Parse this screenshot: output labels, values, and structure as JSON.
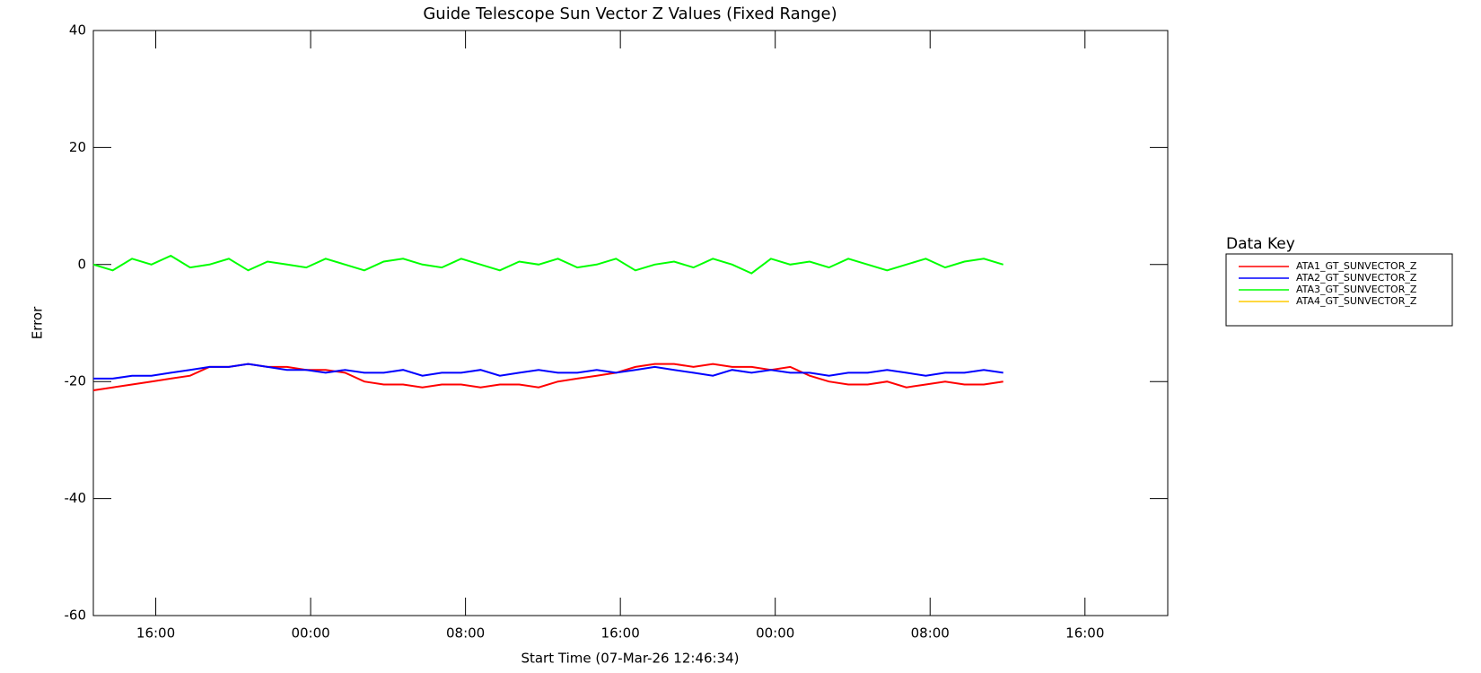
{
  "chart_data": {
    "type": "line",
    "title": "Guide Telescope Sun Vector Z Values (Fixed Range)",
    "xlabel": "Start Time (07-Mar-26 12:46:34)",
    "ylabel": "Error",
    "legend_title": "Data Key",
    "legend": "outside right",
    "x": [
      0,
      1,
      2,
      3,
      4,
      5,
      6,
      7,
      8,
      9,
      10,
      11,
      12,
      13,
      14,
      15,
      16,
      17,
      18,
      19,
      20,
      21,
      22,
      23,
      24,
      25,
      26,
      27,
      28,
      29,
      30,
      31,
      32,
      33,
      34,
      35,
      36,
      37,
      38,
      39,
      40,
      41,
      42,
      43,
      44,
      45,
      46,
      47
    ],
    "xlim": [
      0,
      55.5
    ],
    "xticks": [
      {
        "value": 3.224,
        "label": "16:00"
      },
      {
        "value": 11.224,
        "label": "00:00"
      },
      {
        "value": 19.224,
        "label": "08:00"
      },
      {
        "value": 27.224,
        "label": "16:00"
      },
      {
        "value": 35.224,
        "label": "00:00"
      },
      {
        "value": 43.224,
        "label": "08:00"
      },
      {
        "value": 51.224,
        "label": "16:00"
      }
    ],
    "ylim": [
      -60,
      40
    ],
    "yticks": [
      -60,
      -40,
      -20,
      0,
      20,
      40
    ],
    "series": [
      {
        "name": "ATA1_GT_SUNVECTOR_Z",
        "color": "#ff0000",
        "values": [
          -21.5,
          -21,
          -20.5,
          -20,
          -19.5,
          -19,
          -17.5,
          -17.5,
          -17,
          -17.5,
          -17.5,
          -18,
          -18,
          -18.5,
          -20,
          -20.5,
          -20.5,
          -21,
          -20.5,
          -20.5,
          -21,
          -20.5,
          -20.5,
          -21,
          -20,
          -19.5,
          -19,
          -18.5,
          -17.5,
          -17,
          -17,
          -17.5,
          -17,
          -17.5,
          -17.5,
          -18,
          -17.5,
          -19,
          -20,
          -20.5,
          -20.5,
          -20,
          -21,
          -20.5,
          -20,
          -20.5,
          -20.5,
          -20
        ]
      },
      {
        "name": "ATA2_GT_SUNVECTOR_Z",
        "color": "#0000ff",
        "values": [
          -19.5,
          -19.5,
          -19,
          -19,
          -18.5,
          -18,
          -17.5,
          -17.5,
          -17,
          -17.5,
          -18,
          -18,
          -18.5,
          -18,
          -18.5,
          -18.5,
          -18,
          -19,
          -18.5,
          -18.5,
          -18,
          -19,
          -18.5,
          -18,
          -18.5,
          -18.5,
          -18,
          -18.5,
          -18,
          -17.5,
          -18,
          -18.5,
          -19,
          -18,
          -18.5,
          -18,
          -18.5,
          -18.5,
          -19,
          -18.5,
          -18.5,
          -18,
          -18.5,
          -19,
          -18.5,
          -18.5,
          -18,
          -18.5
        ]
      },
      {
        "name": "ATA3_GT_SUNVECTOR_Z",
        "color": "#00ff00",
        "values": [
          0,
          -1,
          1,
          0,
          1.5,
          -0.5,
          0,
          1,
          -1,
          0.5,
          0,
          -0.5,
          1,
          0,
          -1,
          0.5,
          1,
          0,
          -0.5,
          1,
          0,
          -1,
          0.5,
          0,
          1,
          -0.5,
          0,
          1,
          -1,
          0,
          0.5,
          -0.5,
          1,
          0,
          -1.5,
          1,
          0,
          0.5,
          -0.5,
          1,
          0,
          -1,
          0,
          1,
          -0.5,
          0.5,
          1,
          0
        ]
      },
      {
        "name": "ATA4_GT_SUNVECTOR_Z",
        "color": "#ffcc00",
        "values": [
          null,
          null,
          null,
          null,
          null,
          null,
          null,
          null,
          null,
          null,
          null,
          null,
          null,
          null,
          null,
          null,
          null,
          null,
          null,
          null,
          null,
          null,
          null,
          null,
          null,
          null,
          null,
          null,
          null,
          null,
          null,
          null,
          null,
          null,
          null,
          null,
          null,
          null,
          null,
          null,
          null,
          null,
          null,
          null,
          null,
          null,
          null,
          null
        ]
      }
    ]
  }
}
